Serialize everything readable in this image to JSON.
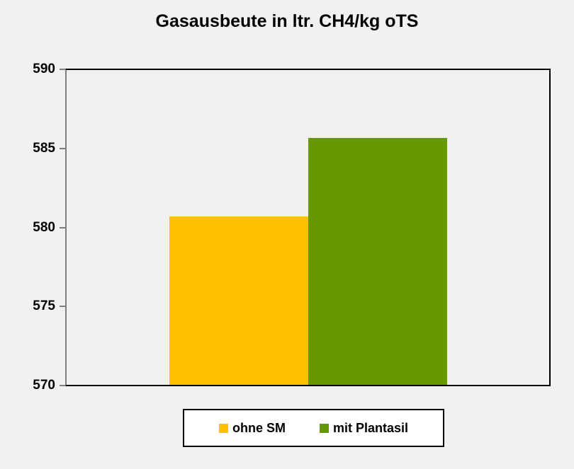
{
  "page": {
    "background": "#F1F1F0"
  },
  "chart_data": {
    "type": "bar",
    "title": "Gasausbeute in ltr. CH4/kg oTS",
    "categories": [
      ""
    ],
    "series": [
      {
        "name": "ohne SM",
        "values": [
          580.7
        ],
        "color": "#FFC000"
      },
      {
        "name": "mit Plantasil",
        "values": [
          585.7
        ],
        "color": "#669900"
      }
    ],
    "xlabel": "",
    "ylabel": "",
    "ylim": [
      570,
      590
    ],
    "yticks": [
      570,
      575,
      580,
      585,
      590
    ],
    "grid": false,
    "legend_position": "bottom",
    "axis_color": "#7f7f7f",
    "frame_color": "#000000"
  }
}
